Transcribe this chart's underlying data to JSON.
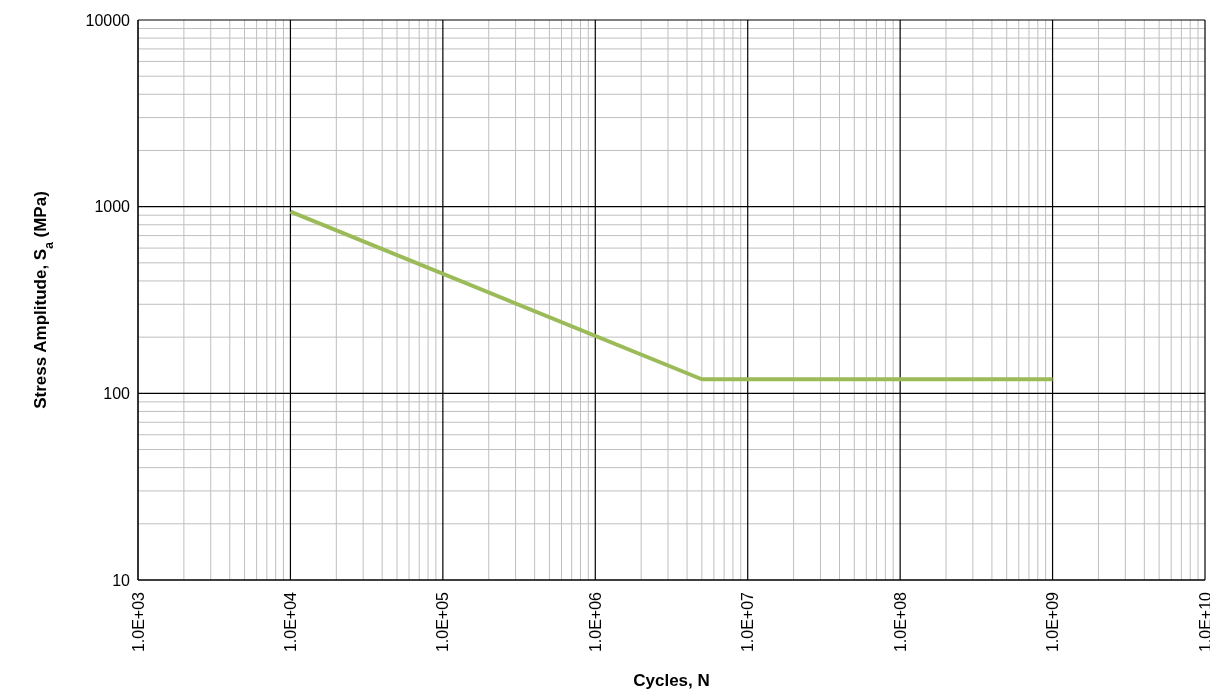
{
  "chart_data": {
    "type": "line",
    "xlabel": "Cycles, N",
    "ylabel": "Stress Amplitude, S$_{a}$ (MPa)",
    "log": "xy",
    "grid": true,
    "marker": "none",
    "line_style": "solid",
    "xlim": [
      1000,
      10000000000
    ],
    "ylim": [
      10,
      10000
    ],
    "xticks": [
      {
        "value": 1000,
        "label": "1.0E+03"
      },
      {
        "value": 10000,
        "label": "1.0E+04"
      },
      {
        "value": 100000,
        "label": "1.0E+05"
      },
      {
        "value": 1000000,
        "label": "1.0E+06"
      },
      {
        "value": 10000000,
        "label": "1.0E+07"
      },
      {
        "value": 100000000,
        "label": "1.0E+08"
      },
      {
        "value": 1000000000,
        "label": "1.0E+09"
      },
      {
        "value": 10000000000,
        "label": "1.0E+10"
      }
    ],
    "yticks": [
      10,
      100,
      1000,
      10000
    ],
    "x": [
      10000,
      5000000,
      1000000000
    ],
    "series": [
      {
        "color": "#9bbb59",
        "values": [
          940,
          119,
          119
        ]
      }
    ]
  }
}
